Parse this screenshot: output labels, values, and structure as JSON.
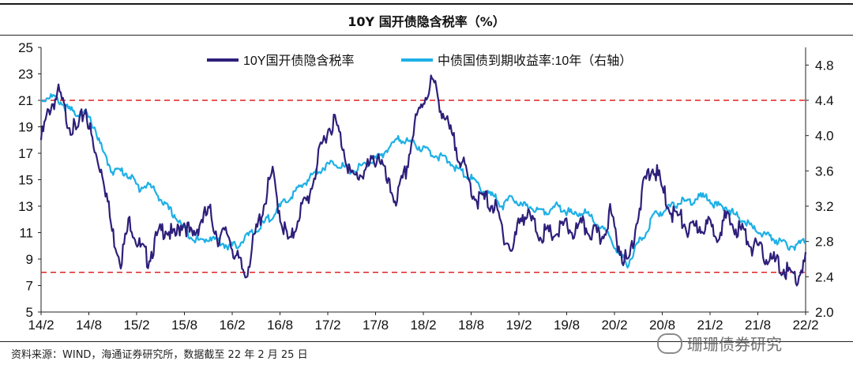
{
  "chart_data": {
    "type": "line",
    "title": "10Y 国开债隐含税率（%）",
    "x_ticks": [
      "14/2",
      "14/8",
      "15/2",
      "15/8",
      "16/2",
      "16/8",
      "17/2",
      "17/8",
      "18/2",
      "18/8",
      "19/2",
      "19/8",
      "20/2",
      "20/8",
      "21/2",
      "21/8",
      "22/2"
    ],
    "y_left": {
      "min": 5,
      "max": 25,
      "ticks": [
        5,
        7,
        9,
        11,
        13,
        15,
        17,
        19,
        21,
        23,
        25
      ]
    },
    "y_right": {
      "min": 2.0,
      "max": 5.0,
      "ticks": [
        "2.0",
        "2.4",
        "2.8",
        "3.2",
        "3.6",
        "4.0",
        "4.4",
        "4.8"
      ]
    },
    "reference_lines": [
      21,
      8
    ],
    "series": [
      {
        "name": "10Y国开债隐含税率",
        "axis": "left",
        "color": "#2e1f7a",
        "values": [
          18.0,
          20.5,
          21.5,
          19.5,
          18.5,
          20.5,
          17.0,
          15.5,
          11.0,
          9.0,
          12.0,
          10.0,
          9.0,
          10.5,
          11.5,
          10.5,
          12.0,
          10.5,
          12.0,
          12.5,
          10.5,
          11.0,
          9.0,
          7.8,
          10.5,
          13.0,
          15.5,
          12.0,
          10.0,
          12.5,
          13.5,
          16.0,
          18.5,
          19.5,
          17.5,
          15.0,
          15.5,
          16.0,
          17.0,
          14.5,
          13.5,
          15.5,
          19.0,
          21.0,
          22.5,
          20.5,
          18.5,
          17.0,
          15.0,
          13.5,
          13.5,
          13.0,
          11.0,
          9.5,
          12.5,
          12.0,
          11.0,
          10.8,
          11.0,
          11.5,
          11.0,
          11.5,
          11.0,
          10.5,
          12.5,
          10.0,
          8.5,
          12.0,
          15.0,
          16.0,
          14.0,
          12.5,
          12.0,
          11.0,
          11.5,
          11.5,
          11.0,
          12.0,
          11.5,
          11.0,
          10.0,
          9.5,
          9.0,
          8.5,
          8.0,
          7.5,
          8.8
        ]
      },
      {
        "name": "中债国债到期收益率:10年（右轴）",
        "axis": "right",
        "color": "#1eb0e6",
        "values": [
          4.4,
          4.45,
          4.4,
          4.3,
          4.25,
          4.25,
          4.1,
          3.8,
          3.6,
          3.6,
          3.55,
          3.4,
          3.45,
          3.35,
          3.2,
          3.1,
          2.95,
          2.85,
          2.8,
          2.85,
          2.8,
          2.75,
          2.75,
          2.85,
          2.9,
          3.0,
          3.1,
          3.2,
          3.3,
          3.4,
          3.5,
          3.6,
          3.65,
          3.7,
          3.65,
          3.6,
          3.65,
          3.7,
          3.75,
          3.85,
          3.95,
          3.95,
          3.9,
          3.85,
          3.8,
          3.75,
          3.7,
          3.6,
          3.55,
          3.45,
          3.35,
          3.3,
          3.2,
          3.3,
          3.2,
          3.2,
          3.15,
          3.15,
          3.2,
          3.15,
          3.1,
          3.15,
          3.05,
          2.95,
          2.85,
          2.65,
          2.55,
          2.75,
          2.9,
          3.1,
          3.15,
          3.2,
          3.25,
          3.25,
          3.3,
          3.3,
          3.2,
          3.2,
          3.1,
          3.05,
          2.95,
          2.9,
          2.85,
          2.8,
          2.75,
          2.75,
          2.8
        ]
      }
    ]
  },
  "source_note": "资料来源：WIND，海通证券研究所，数据截至 22 年 2 月 25 日",
  "watermark": "珊珊债券研究"
}
